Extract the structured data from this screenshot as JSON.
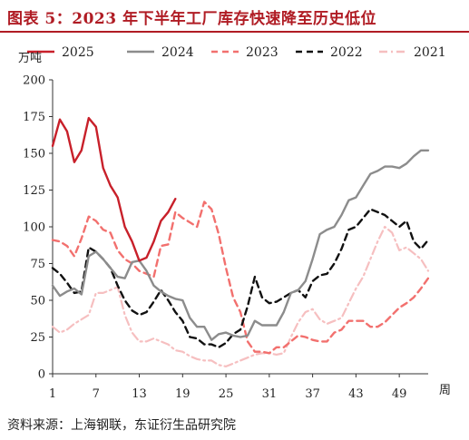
{
  "title": "图表 5：2023 年下半年工厂库存快速降至历史低位",
  "source": "资料来源：上海钢联，东证衍生品研究院",
  "colors": {
    "title": "#b01c24",
    "s2025": "#c8202a",
    "s2024": "#8c8c8c",
    "s2023": "#f2706e",
    "s2022": "#111111",
    "s2021": "#f6bfc0"
  },
  "chart_data": {
    "type": "line",
    "ylabel": "万吨",
    "xlabel": "周",
    "ylim": [
      0,
      200
    ],
    "yticks": [
      "0",
      "25",
      "50",
      "75",
      "100",
      "125",
      "150",
      "175",
      "200"
    ],
    "xlim": [
      1,
      53
    ],
    "xticks": [
      "1",
      "7",
      "13",
      "19",
      "25",
      "31",
      "37",
      "43",
      "49"
    ],
    "legend_position": "top",
    "grid": false,
    "series": [
      {
        "name": "2025",
        "color": "#c8202a",
        "dash": "solid",
        "x": [
          1,
          2,
          3,
          4,
          5,
          6,
          7,
          8,
          9,
          10,
          11,
          12,
          13,
          14,
          15,
          16,
          17,
          18
        ],
        "y": [
          155,
          173,
          165,
          144,
          152,
          174,
          168,
          140,
          128,
          120,
          100,
          90,
          77,
          79,
          90,
          104,
          110,
          119
        ]
      },
      {
        "name": "2024",
        "color": "#8c8c8c",
        "dash": "solid",
        "x": [
          1,
          2,
          3,
          4,
          5,
          6,
          7,
          8,
          9,
          10,
          11,
          12,
          13,
          14,
          15,
          16,
          17,
          18,
          19,
          20,
          21,
          22,
          23,
          24,
          25,
          26,
          27,
          28,
          29,
          30,
          31,
          32,
          33,
          34,
          35,
          36,
          37,
          38,
          39,
          40,
          41,
          42,
          43,
          44,
          45,
          46,
          47,
          48,
          49,
          50,
          51,
          52,
          53
        ],
        "y": [
          60,
          53,
          56,
          58,
          54,
          80,
          83,
          78,
          72,
          66,
          65,
          76,
          77,
          70,
          60,
          56,
          53,
          51,
          50,
          38,
          32,
          32,
          23,
          27,
          28,
          26,
          25,
          26,
          36,
          33,
          33,
          33,
          42,
          55,
          57,
          63,
          78,
          95,
          98,
          100,
          108,
          118,
          120,
          128,
          136,
          138,
          141,
          141,
          140,
          143,
          148,
          152,
          152
        ]
      },
      {
        "name": "2023",
        "color": "#f2706e",
        "dash": "dashed",
        "x": [
          1,
          2,
          3,
          4,
          5,
          6,
          7,
          8,
          9,
          10,
          11,
          12,
          13,
          14,
          15,
          16,
          17,
          18,
          19,
          20,
          21,
          22,
          23,
          24,
          25,
          26,
          27,
          28,
          29,
          30,
          31,
          32,
          33,
          34,
          35,
          36,
          37,
          38,
          39,
          40,
          41,
          42,
          43,
          44,
          45,
          46,
          47,
          48,
          49,
          50,
          51,
          52,
          53
        ],
        "y": [
          91,
          90,
          87,
          80,
          92,
          107,
          104,
          98,
          96,
          84,
          78,
          75,
          70,
          68,
          66,
          87,
          88,
          110,
          106,
          103,
          100,
          117,
          112,
          95,
          72,
          52,
          42,
          22,
          15,
          15,
          14,
          18,
          18,
          22,
          26,
          25,
          23,
          22,
          22,
          28,
          30,
          36,
          36,
          36,
          32,
          32,
          35,
          40,
          45,
          48,
          52,
          58,
          65
        ]
      },
      {
        "name": "2022",
        "color": "#111111",
        "dash": "dashed",
        "x": [
          1,
          2,
          3,
          4,
          5,
          6,
          7,
          8,
          9,
          10,
          11,
          12,
          13,
          14,
          15,
          16,
          17,
          18,
          19,
          20,
          21,
          22,
          23,
          24,
          25,
          26,
          27,
          28,
          29,
          30,
          31,
          32,
          33,
          34,
          35,
          36,
          37,
          38,
          39,
          40,
          41,
          42,
          43,
          44,
          45,
          46,
          47,
          48,
          49,
          50,
          51,
          52,
          53
        ],
        "y": [
          72,
          68,
          62,
          55,
          56,
          86,
          83,
          78,
          72,
          60,
          50,
          43,
          40,
          42,
          49,
          57,
          50,
          42,
          36,
          25,
          24,
          20,
          20,
          18,
          21,
          27,
          30,
          46,
          66,
          52,
          48,
          49,
          52,
          55,
          57,
          52,
          63,
          67,
          68,
          75,
          85,
          98,
          100,
          106,
          112,
          110,
          108,
          104,
          100,
          104,
          90,
          85,
          91
        ]
      },
      {
        "name": "2021",
        "color": "#f6bfc0",
        "dash": "dashdot",
        "x": [
          1,
          2,
          3,
          4,
          5,
          6,
          7,
          8,
          9,
          10,
          11,
          12,
          13,
          14,
          15,
          16,
          17,
          18,
          19,
          20,
          21,
          22,
          23,
          24,
          25,
          26,
          27,
          28,
          29,
          30,
          31,
          32,
          33,
          34,
          35,
          36,
          37,
          38,
          39,
          40,
          41,
          42,
          43,
          44,
          45,
          46,
          47,
          48,
          49,
          50,
          51,
          52,
          53
        ],
        "y": [
          32,
          28,
          30,
          34,
          37,
          40,
          55,
          55,
          57,
          59,
          40,
          28,
          22,
          22,
          24,
          22,
          20,
          16,
          15,
          12,
          10,
          9,
          9,
          6,
          5,
          7,
          9,
          11,
          13,
          14,
          14,
          13,
          14,
          25,
          35,
          42,
          44,
          37,
          34,
          36,
          38,
          48,
          58,
          66,
          78,
          90,
          100,
          96,
          84,
          86,
          82,
          78,
          70
        ]
      }
    ]
  }
}
